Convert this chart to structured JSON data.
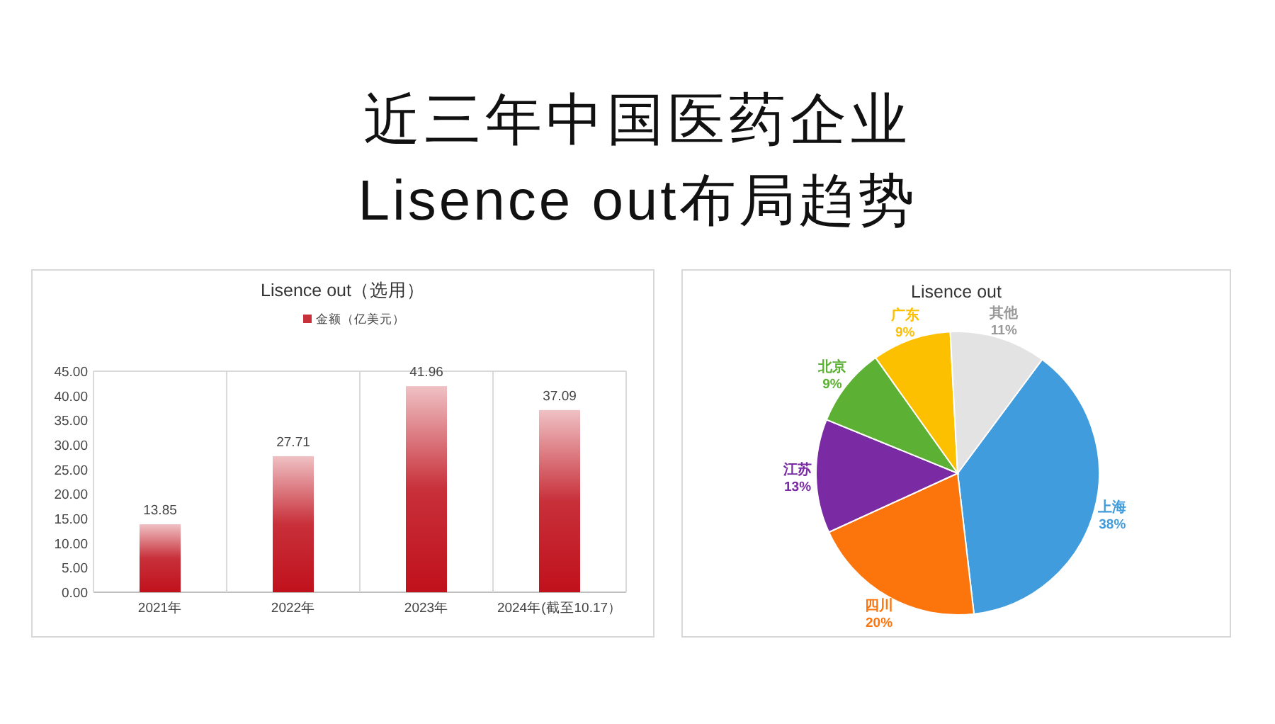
{
  "chart_data": [
    {
      "type": "other",
      "title": "近三年中国医药企业",
      "subtitle": "Lisence out布局趋势"
    },
    {
      "type": "bar",
      "title": "Lisence out（选用）",
      "categories": [
        "2021年",
        "2022年",
        "2023年",
        "2024年(截至10.17）"
      ],
      "series": [
        {
          "name": "金额（亿美元）",
          "color": "#c8303a",
          "values": [
            13.85,
            27.71,
            41.96,
            37.09
          ]
        }
      ],
      "ylim": [
        0,
        45
      ],
      "yticks": [
        {
          "value": 0,
          "label": "0.00"
        },
        {
          "value": 5,
          "label": "5.00"
        },
        {
          "value": 10,
          "label": "10.00"
        },
        {
          "value": 15,
          "label": "15.00"
        },
        {
          "value": 20,
          "label": "20.00"
        },
        {
          "value": 25,
          "label": "25.00"
        },
        {
          "value": 30,
          "label": "30.00"
        },
        {
          "value": 35,
          "label": "35.00"
        },
        {
          "value": 40,
          "label": "40.00"
        },
        {
          "value": 45,
          "label": "45.00"
        }
      ],
      "grid": "x",
      "legend": "top",
      "data_labels": true
    },
    {
      "type": "pie",
      "title": "Lisence out",
      "categories": [
        "上海",
        "四川",
        "江苏",
        "北京",
        "广东",
        "其他"
      ],
      "values": [
        38,
        20,
        13,
        9,
        9,
        11
      ],
      "colors": [
        "#409cdc",
        "#fb740c",
        "#7a2ba3",
        "#5cb034",
        "#fdc000",
        "#e4e3e4"
      ],
      "value_labels": [
        "38%",
        "20%",
        "13%",
        "9%",
        "9%",
        "11%"
      ]
    }
  ]
}
